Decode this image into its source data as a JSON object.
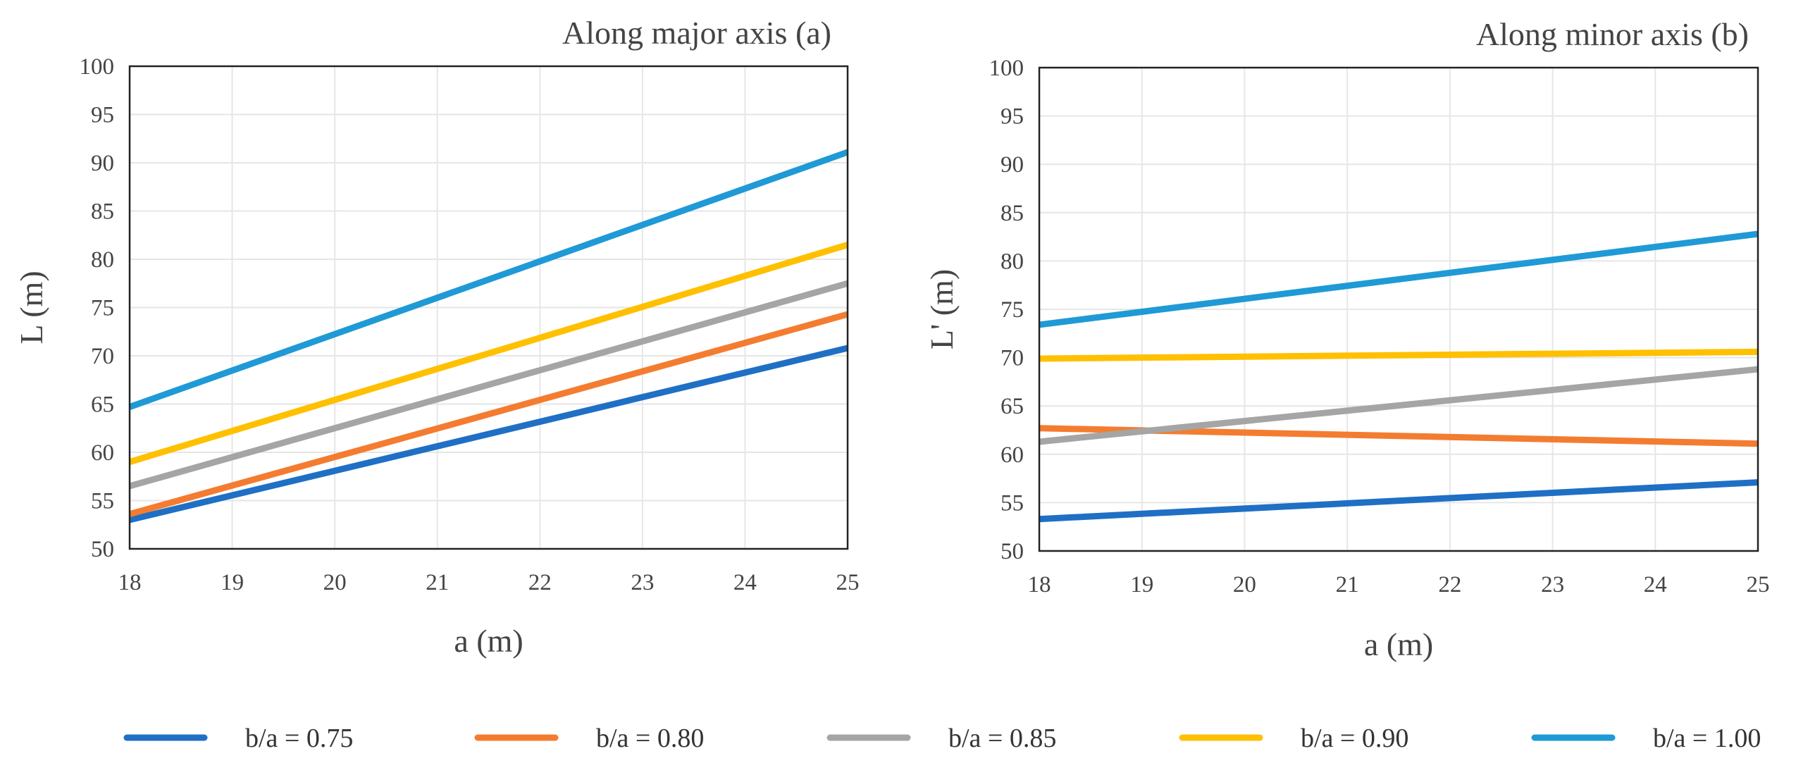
{
  "chart_data": [
    {
      "type": "line",
      "title": "Along major axis (a)",
      "xlabel": "a (m)",
      "ylabel": "L (m)",
      "xlim": [
        18,
        25
      ],
      "ylim": [
        50,
        100
      ],
      "xticks": [
        18,
        19,
        20,
        21,
        22,
        23,
        24,
        25
      ],
      "yticks": [
        50,
        55,
        60,
        65,
        70,
        75,
        80,
        85,
        90,
        95,
        100
      ],
      "grid": true,
      "x": [
        18,
        25
      ],
      "series": [
        {
          "name": "b/a = 0.75",
          "color": "#1f6fc5",
          "values": [
            53.0,
            70.8
          ]
        },
        {
          "name": "b/a = 0.80",
          "color": "#f47c30",
          "values": [
            53.6,
            74.3
          ]
        },
        {
          "name": "b/a = 0.85",
          "color": "#a5a5a5",
          "values": [
            56.5,
            77.5
          ]
        },
        {
          "name": "b/a = 0.90",
          "color": "#ffc000",
          "values": [
            59.0,
            81.5
          ]
        },
        {
          "name": "b/a = 1.00",
          "color": "#1f9ad6",
          "values": [
            64.7,
            91.1
          ]
        }
      ]
    },
    {
      "type": "line",
      "title": "Along minor axis (b)",
      "xlabel": "a (m)",
      "ylabel": "L' (m)",
      "xlim": [
        18,
        25
      ],
      "ylim": [
        50,
        100
      ],
      "xticks": [
        18,
        19,
        20,
        21,
        22,
        23,
        24,
        25
      ],
      "yticks": [
        50,
        55,
        60,
        65,
        70,
        75,
        80,
        85,
        90,
        95,
        100
      ],
      "grid": true,
      "x": [
        18,
        25
      ],
      "series": [
        {
          "name": "b/a = 0.75",
          "color": "#1f6fc5",
          "values": [
            53.3,
            57.1
          ]
        },
        {
          "name": "b/a = 0.80",
          "color": "#f47c30",
          "values": [
            62.7,
            61.1
          ]
        },
        {
          "name": "b/a = 0.85",
          "color": "#a5a5a5",
          "values": [
            61.3,
            68.8
          ]
        },
        {
          "name": "b/a = 0.90",
          "color": "#ffc000",
          "values": [
            69.9,
            70.6
          ]
        },
        {
          "name": "b/a = 1.00",
          "color": "#1f9ad6",
          "values": [
            73.4,
            82.8
          ]
        }
      ]
    }
  ],
  "legend": {
    "position": "bottom",
    "items": [
      {
        "label": "b/a = 0.75",
        "color": "#1f6fc5"
      },
      {
        "label": "b/a = 0.80",
        "color": "#f47c30"
      },
      {
        "label": "b/a = 0.85",
        "color": "#a5a5a5"
      },
      {
        "label": "b/a = 0.90",
        "color": "#ffc000"
      },
      {
        "label": "b/a = 1.00",
        "color": "#1f9ad6"
      }
    ]
  }
}
